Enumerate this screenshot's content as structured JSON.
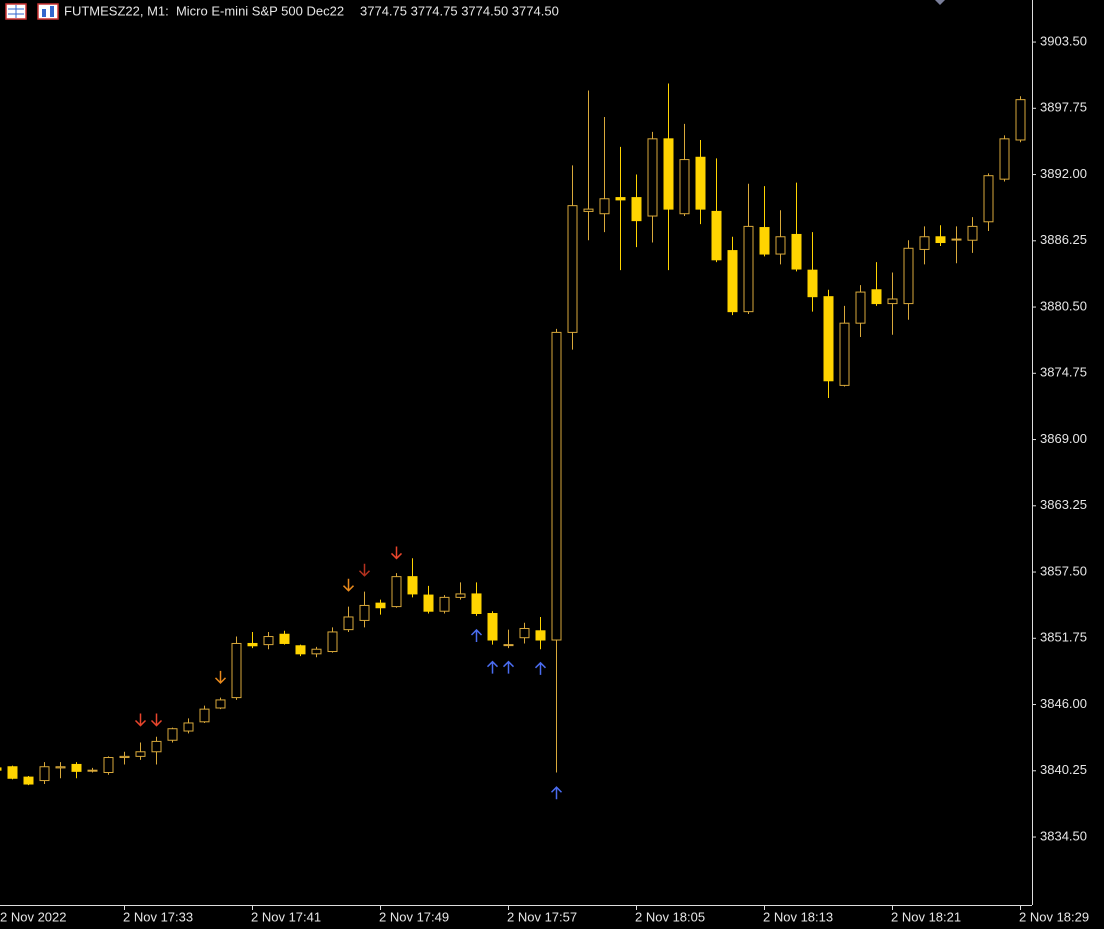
{
  "chart_data": {
    "type": "candlestick",
    "title": "FUTMESZ22, M1:  Micro E-mini S&P 500 Dec22",
    "ohlc_header": "3774.75 3774.75 3774.50 3774.50",
    "up_color": "#d9a93b",
    "down_color": "#ffd400",
    "categories": [
      "2 Nov 2022",
      null,
      null,
      null,
      null,
      null,
      null,
      null,
      "2 Nov 17:33",
      null,
      null,
      null,
      null,
      null,
      null,
      null,
      "2 Nov 17:41",
      null,
      null,
      null,
      null,
      null,
      null,
      null,
      "2 Nov 17:49",
      null,
      null,
      null,
      null,
      null,
      null,
      null,
      "2 Nov 17:57",
      null,
      null,
      null,
      null,
      null,
      null,
      null,
      "2 Nov 18:05",
      null,
      null,
      null,
      null,
      null,
      null,
      null,
      "2 Nov 18:13",
      null,
      null,
      null,
      null,
      null,
      null,
      null,
      "2 Nov 18:21",
      null,
      null,
      null,
      null,
      null,
      null,
      null,
      "2 Nov 18:29"
    ],
    "open": [
      3840.5,
      3840.6,
      3839.7,
      3839.4,
      3840.5,
      3840.8,
      3840.3,
      3840.1,
      3841.4,
      3841.5,
      3841.9,
      3842.9,
      3843.7,
      3844.5,
      3845.7,
      3846.6,
      3851.3,
      3851.2,
      3852.1,
      3851.1,
      3850.4,
      3850.6,
      3852.5,
      3853.3,
      3854.8,
      3854.5,
      3857.1,
      3855.5,
      3854.1,
      3855.3,
      3855.6,
      3853.9,
      3851.2,
      3851.8,
      3852.4,
      3851.6,
      3878.3,
      3888.8,
      3888.6,
      3890.0,
      3890.0,
      3888.4,
      3895.1,
      3888.6,
      3893.5,
      3888.8,
      3885.4,
      3880.1,
      3887.4,
      3885.1,
      3886.8,
      3883.7,
      3881.4,
      3873.7,
      3879.1,
      3882.0,
      3880.8,
      3880.8,
      3885.5,
      3886.6,
      3886.4,
      3886.3,
      3887.9,
      3891.6,
      3895.0
    ],
    "high": [
      3840.8,
      3840.7,
      3839.8,
      3841.0,
      3841.0,
      3841.0,
      3840.5,
      3841.5,
      3841.9,
      3842.7,
      3843.2,
      3844.0,
      3844.8,
      3845.9,
      3846.6,
      3851.9,
      3852.3,
      3852.3,
      3852.4,
      3851.2,
      3851.0,
      3852.7,
      3854.5,
      3855.8,
      3855.1,
      3857.4,
      3858.7,
      3856.3,
      3855.5,
      3856.6,
      3856.6,
      3854.1,
      3852.5,
      3853.1,
      3853.6,
      3878.6,
      3892.8,
      3899.3,
      3897.0,
      3894.4,
      3892.0,
      3895.7,
      3899.9,
      3896.4,
      3895.0,
      3893.4,
      3886.6,
      3891.2,
      3891.0,
      3888.9,
      3891.3,
      3887.0,
      3882.0,
      3880.6,
      3882.4,
      3884.4,
      3883.5,
      3886.3,
      3887.5,
      3887.6,
      3887.5,
      3888.3,
      3892.1,
      3895.4,
      3898.8
    ],
    "low": [
      3840.2,
      3839.5,
      3839.0,
      3839.1,
      3839.6,
      3839.6,
      3840.1,
      3839.9,
      3840.8,
      3841.2,
      3840.8,
      3842.7,
      3843.5,
      3844.4,
      3845.6,
      3846.4,
      3850.9,
      3850.8,
      3851.2,
      3850.2,
      3850.1,
      3850.5,
      3852.3,
      3852.7,
      3853.8,
      3854.4,
      3855.3,
      3853.9,
      3853.9,
      3855.1,
      3853.7,
      3851.2,
      3850.9,
      3851.3,
      3850.8,
      3840.1,
      3876.8,
      3886.3,
      3887.0,
      3883.7,
      3885.7,
      3886.1,
      3883.7,
      3888.4,
      3887.7,
      3884.4,
      3879.8,
      3879.9,
      3884.9,
      3884.2,
      3883.6,
      3880.1,
      3872.6,
      3873.6,
      3877.9,
      3880.6,
      3878.1,
      3879.4,
      3884.2,
      3885.8,
      3884.3,
      3885.2,
      3887.1,
      3891.4,
      3894.8
    ],
    "close": [
      3840.3,
      3839.6,
      3839.1,
      3840.6,
      3840.6,
      3840.2,
      3840.3,
      3841.4,
      3841.5,
      3841.9,
      3842.8,
      3843.9,
      3844.4,
      3845.6,
      3846.4,
      3851.3,
      3851.1,
      3851.9,
      3851.3,
      3850.4,
      3850.8,
      3852.3,
      3853.6,
      3854.6,
      3854.4,
      3857.1,
      3855.6,
      3854.1,
      3855.3,
      3855.6,
      3853.9,
      3851.6,
      3851.2,
      3852.6,
      3851.6,
      3878.3,
      3889.3,
      3889.0,
      3889.9,
      3889.8,
      3888.0,
      3895.1,
      3889.0,
      3893.3,
      3889.0,
      3884.6,
      3880.1,
      3887.5,
      3885.1,
      3886.6,
      3883.8,
      3881.4,
      3874.1,
      3879.1,
      3881.8,
      3880.8,
      3881.2,
      3885.6,
      3886.6,
      3886.1,
      3886.4,
      3887.5,
      3891.9,
      3895.1,
      3898.5
    ],
    "signals": [
      {
        "index": 9,
        "value": 3844.7,
        "direction": "down",
        "color": "#e8452c"
      },
      {
        "index": 10,
        "value": 3844.7,
        "direction": "down",
        "color": "#e8452c"
      },
      {
        "index": 14,
        "value": 3848.4,
        "direction": "down",
        "color": "#e8891c"
      },
      {
        "index": 22,
        "value": 3856.4,
        "direction": "down",
        "color": "#e8891c"
      },
      {
        "index": 23,
        "value": 3857.7,
        "direction": "down",
        "color": "#b5321f"
      },
      {
        "index": 25,
        "value": 3859.2,
        "direction": "down",
        "color": "#e8452c"
      },
      {
        "index": 30,
        "value": 3851.95,
        "direction": "up",
        "color": "#4a6cf0"
      },
      {
        "index": 31,
        "value": 3849.2,
        "direction": "up",
        "color": "#4a6cf0"
      },
      {
        "index": 32,
        "value": 3849.2,
        "direction": "up",
        "color": "#4a6cf0"
      },
      {
        "index": 34,
        "value": 3849.1,
        "direction": "up",
        "color": "#4a6cf0"
      },
      {
        "index": 35,
        "value": 3838.3,
        "direction": "up",
        "color": "#4a6cf0"
      }
    ],
    "ylim": [
      3828.6,
      3907.15
    ],
    "yticks": [
      {
        "value": 3903.5,
        "label": "3903.50"
      },
      {
        "value": 3897.75,
        "label": "3897.75"
      },
      {
        "value": 3892,
        "label": "3892.00"
      },
      {
        "value": 3886.25,
        "label": "3886.25"
      },
      {
        "value": 3880.5,
        "label": "3880.50"
      },
      {
        "value": 3874.75,
        "label": "3874.75"
      },
      {
        "value": 3869,
        "label": "3869.00"
      },
      {
        "value": 3863.25,
        "label": "3863.25"
      },
      {
        "value": 3857.5,
        "label": "3857.50"
      },
      {
        "value": 3851.75,
        "label": "3851.75"
      },
      {
        "value": 3846,
        "label": "3846.00"
      },
      {
        "value": 3840.25,
        "label": "3840.25"
      },
      {
        "value": 3834.5,
        "label": "3834.50"
      }
    ]
  }
}
